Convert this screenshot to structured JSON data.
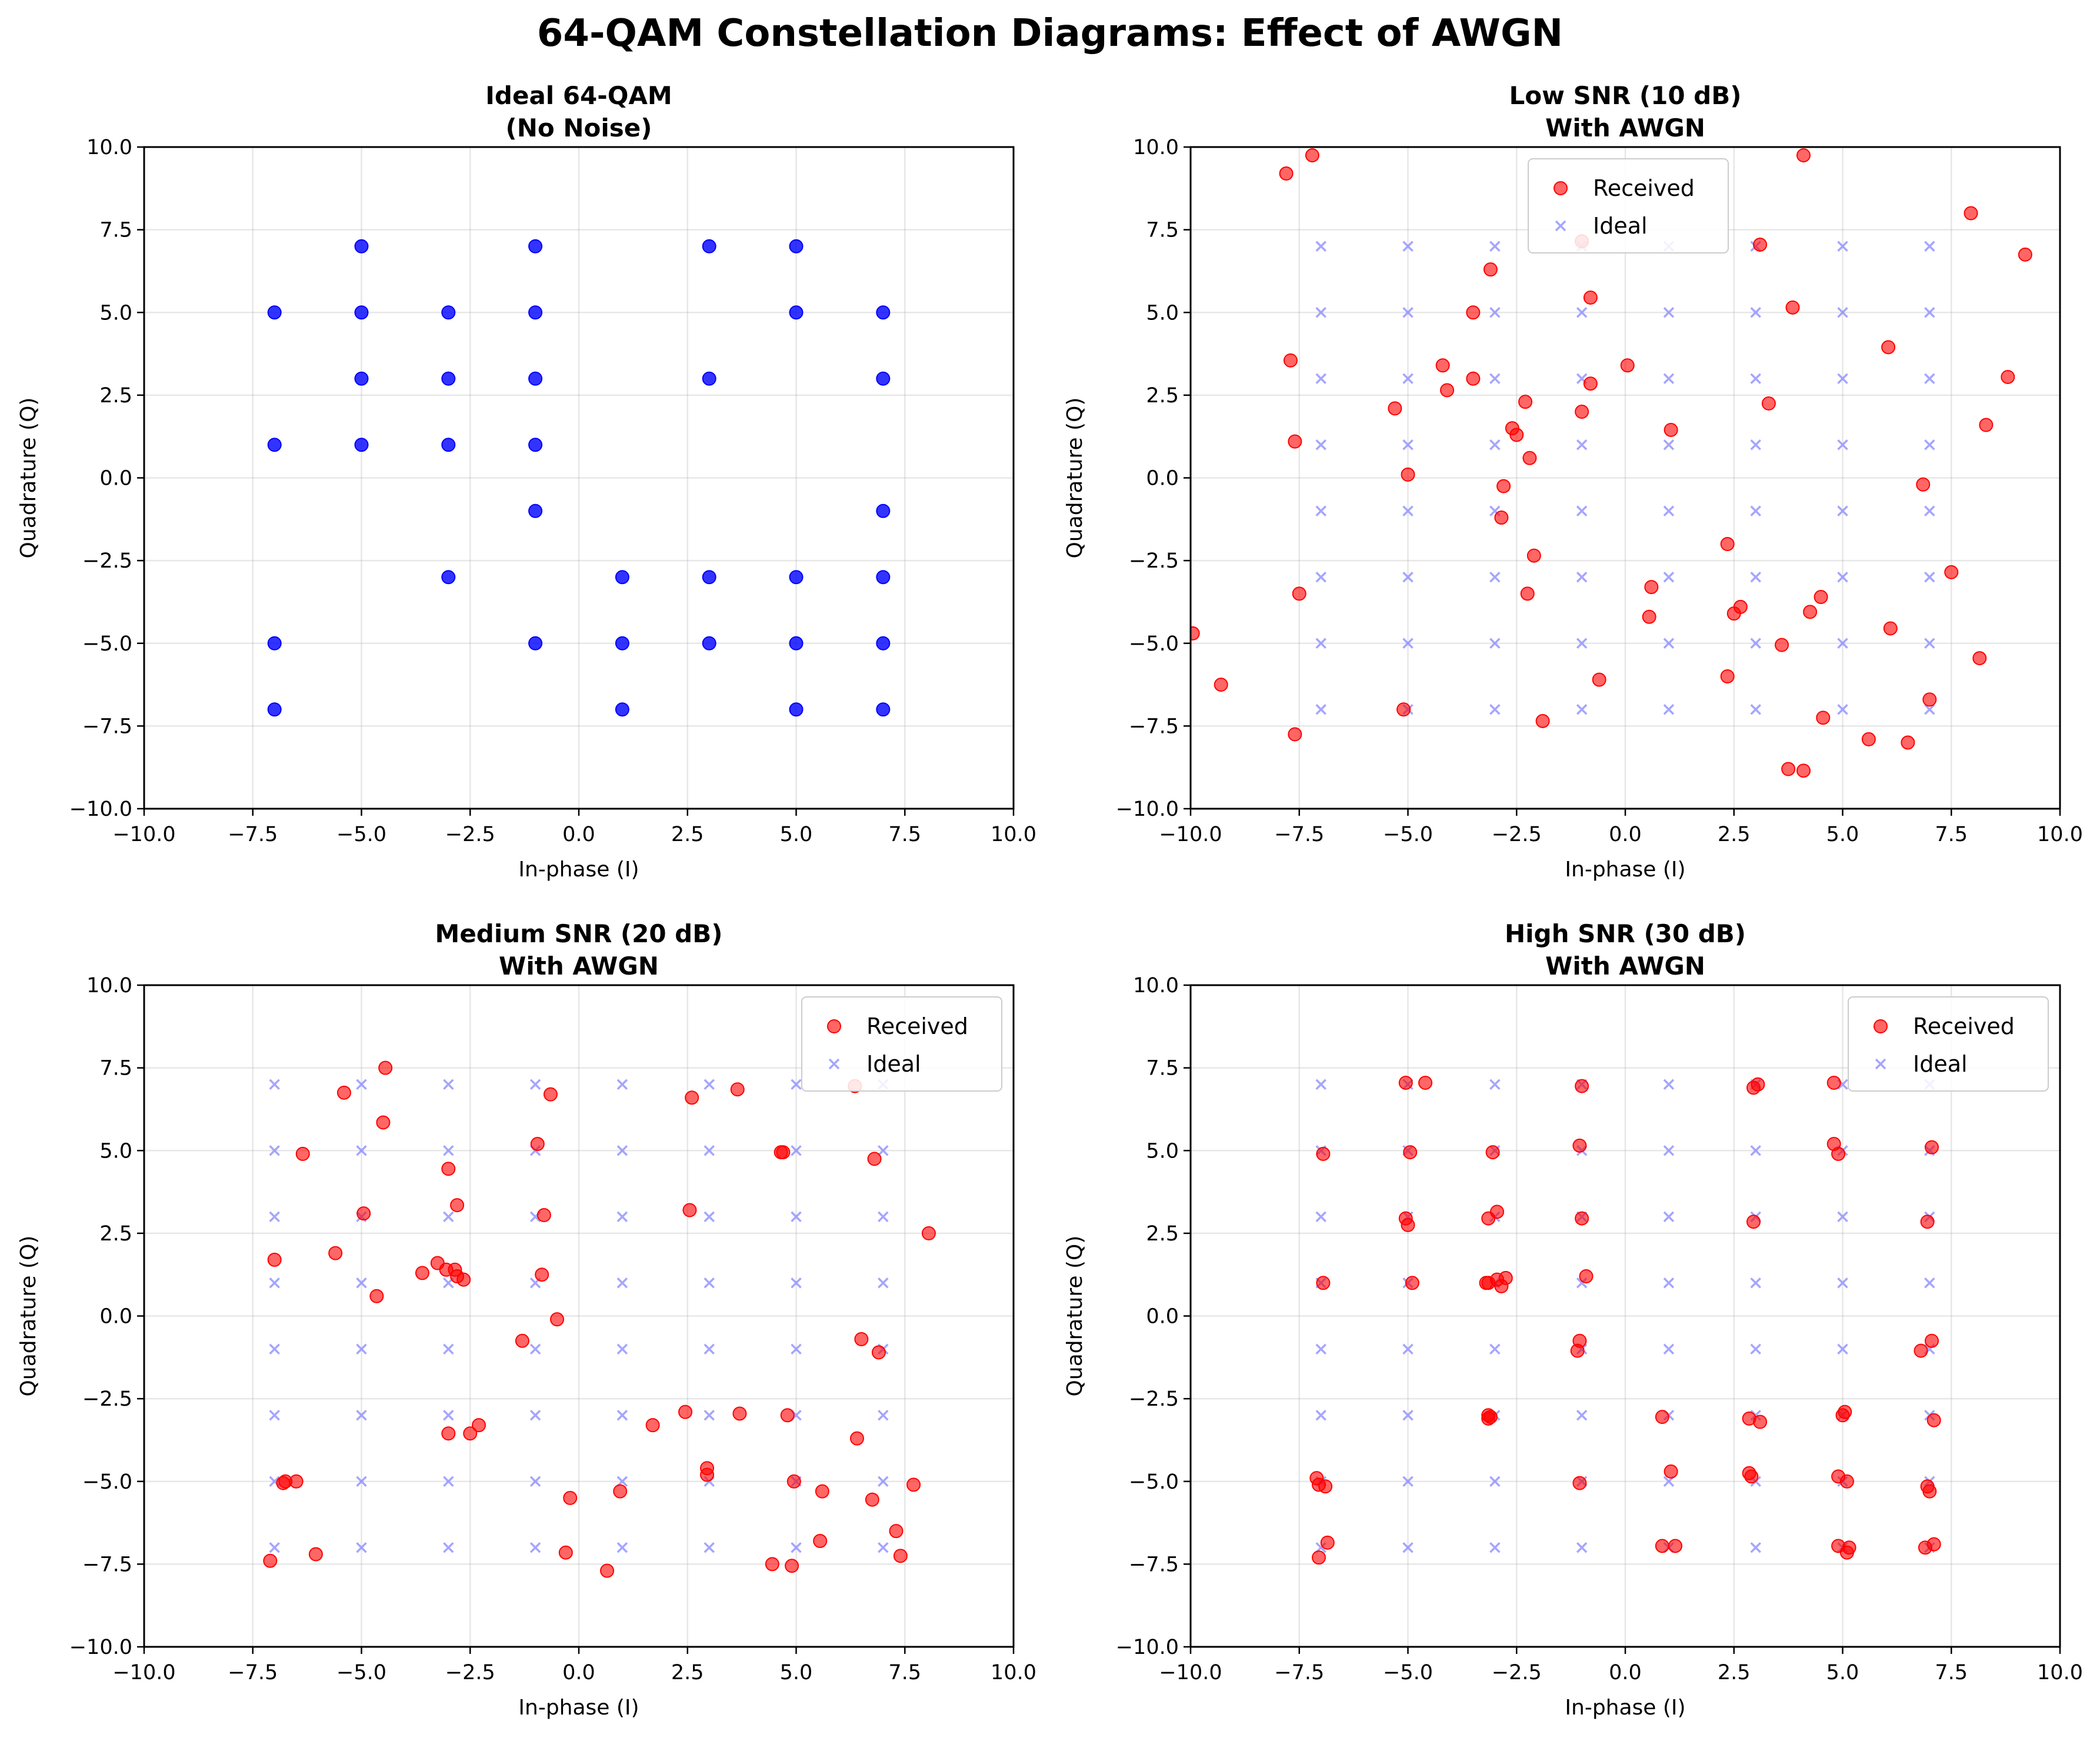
{
  "figure": {
    "title": "64-QAM Constellation Diagrams: Effect of AWGN"
  },
  "chart_data": [
    {
      "type": "scatter",
      "title": "Ideal 64-QAM",
      "subtitle": "(No Noise)",
      "xlabel": "In-phase (I)",
      "ylabel": "Quadrature (Q)",
      "xlim": [
        -10,
        10
      ],
      "ylim": [
        -10,
        10
      ],
      "xticks": [
        -10,
        -7.5,
        -5,
        -2.5,
        0,
        2.5,
        5,
        7.5,
        10
      ],
      "yticks": [
        -10,
        -7.5,
        -5,
        -2.5,
        0,
        2.5,
        5,
        7.5,
        10
      ],
      "grid": true,
      "legend": null,
      "series": [
        {
          "color": "#0000ff",
          "marker": "circle",
          "points": [
            [
              -7,
              5
            ],
            [
              -7,
              1
            ],
            [
              -7,
              -5
            ],
            [
              -7,
              -7
            ],
            [
              -5,
              7
            ],
            [
              -5,
              5
            ],
            [
              -5,
              3
            ],
            [
              -5,
              1
            ],
            [
              -3,
              5
            ],
            [
              -3,
              3
            ],
            [
              -3,
              1
            ],
            [
              -3,
              -3
            ],
            [
              -1,
              7
            ],
            [
              -1,
              5
            ],
            [
              -1,
              3
            ],
            [
              -1,
              1
            ],
            [
              -1,
              -1
            ],
            [
              -1,
              -5
            ],
            [
              1,
              -3
            ],
            [
              1,
              -5
            ],
            [
              1,
              -7
            ],
            [
              3,
              7
            ],
            [
              3,
              3
            ],
            [
              3,
              -3
            ],
            [
              3,
              -5
            ],
            [
              5,
              7
            ],
            [
              5,
              5
            ],
            [
              5,
              -3
            ],
            [
              5,
              -5
            ],
            [
              5,
              -7
            ],
            [
              7,
              5
            ],
            [
              7,
              3
            ],
            [
              7,
              -1
            ],
            [
              7,
              -3
            ],
            [
              7,
              -5
            ],
            [
              7,
              -7
            ]
          ]
        }
      ]
    },
    {
      "type": "scatter",
      "title": "Low SNR (10 dB)",
      "subtitle": "With AWGN",
      "xlabel": "In-phase (I)",
      "ylabel": "Quadrature (Q)",
      "xlim": [
        -10,
        10
      ],
      "ylim": [
        -10,
        10
      ],
      "xticks": [
        -10,
        -7.5,
        -5,
        -2.5,
        0,
        2.5,
        5,
        7.5,
        10
      ],
      "yticks": [
        -10,
        -7.5,
        -5,
        -2.5,
        0,
        2.5,
        5,
        7.5,
        10
      ],
      "grid": true,
      "legend": "top-center",
      "series": [
        {
          "name": "Received",
          "color": "#ff0000",
          "marker": "circle",
          "points": [
            [
              -7.8,
              9.2
            ],
            [
              -7.2,
              9.75
            ],
            [
              -7.7,
              3.55
            ],
            [
              -7.6,
              1.1
            ],
            [
              -7.5,
              -3.5
            ],
            [
              -7.6,
              -7.75
            ],
            [
              -9.95,
              -4.7
            ],
            [
              -9.3,
              -6.25
            ],
            [
              -5.3,
              2.1
            ],
            [
              -5.0,
              0.1
            ],
            [
              -5.1,
              -7.0
            ],
            [
              -4.2,
              3.4
            ],
            [
              -4.1,
              2.65
            ],
            [
              -3.5,
              5.0
            ],
            [
              -3.5,
              3.0
            ],
            [
              -3.1,
              6.3
            ],
            [
              -2.6,
              1.5
            ],
            [
              -2.5,
              1.3
            ],
            [
              -2.3,
              2.3
            ],
            [
              -2.2,
              0.6
            ],
            [
              -2.8,
              -0.25
            ],
            [
              -2.85,
              -1.2
            ],
            [
              -2.1,
              -2.35
            ],
            [
              -2.25,
              -3.5
            ],
            [
              -1.9,
              -7.35
            ],
            [
              -1.0,
              7.15
            ],
            [
              -0.8,
              5.45
            ],
            [
              -0.8,
              2.85
            ],
            [
              -1.0,
              2.0
            ],
            [
              -0.6,
              -6.1
            ],
            [
              0.05,
              3.4
            ],
            [
              1.05,
              1.45
            ],
            [
              0.6,
              -3.3
            ],
            [
              0.55,
              -4.2
            ],
            [
              3.1,
              7.05
            ],
            [
              3.3,
              2.25
            ],
            [
              3.85,
              5.15
            ],
            [
              2.35,
              -2.0
            ],
            [
              2.5,
              -4.1
            ],
            [
              2.65,
              -3.9
            ],
            [
              2.35,
              -6.0
            ],
            [
              3.6,
              -5.05
            ],
            [
              3.75,
              -8.8
            ],
            [
              4.1,
              -8.85
            ],
            [
              4.25,
              -4.05
            ],
            [
              4.5,
              -3.6
            ],
            [
              4.55,
              -7.25
            ],
            [
              4.1,
              9.75
            ],
            [
              5.6,
              -7.9
            ],
            [
              6.05,
              3.95
            ],
            [
              6.1,
              -4.55
            ],
            [
              6.5,
              -8.0
            ],
            [
              6.85,
              -0.2
            ],
            [
              7.0,
              -6.7
            ],
            [
              7.5,
              -2.85
            ],
            [
              7.95,
              8.0
            ],
            [
              8.15,
              -5.45
            ],
            [
              8.3,
              1.6
            ],
            [
              8.8,
              3.05
            ],
            [
              9.2,
              6.75
            ]
          ]
        },
        {
          "name": "Ideal",
          "color": "#7f7fff",
          "marker": "x",
          "grid_points": [
            -7,
            -5,
            -3,
            -1,
            1,
            3,
            5,
            7
          ]
        }
      ]
    },
    {
      "type": "scatter",
      "title": "Medium SNR (20 dB)",
      "subtitle": "With AWGN",
      "xlabel": "In-phase (I)",
      "ylabel": "Quadrature (Q)",
      "xlim": [
        -10,
        10
      ],
      "ylim": [
        -10,
        10
      ],
      "xticks": [
        -10,
        -7.5,
        -5,
        -2.5,
        0,
        2.5,
        5,
        7.5,
        10
      ],
      "yticks": [
        -10,
        -7.5,
        -5,
        -2.5,
        0,
        2.5,
        5,
        7.5,
        10
      ],
      "grid": true,
      "legend": "top-right",
      "series": [
        {
          "name": "Received",
          "color": "#ff0000",
          "marker": "circle",
          "points": [
            [
              -7.0,
              1.7
            ],
            [
              -7.1,
              -7.4
            ],
            [
              -6.35,
              4.9
            ],
            [
              -6.8,
              -5.05
            ],
            [
              -6.75,
              -5.0
            ],
            [
              -6.5,
              -5.0
            ],
            [
              -6.05,
              -7.2
            ],
            [
              -5.4,
              6.75
            ],
            [
              -5.6,
              1.9
            ],
            [
              -4.95,
              3.1
            ],
            [
              -4.65,
              0.6
            ],
            [
              -4.5,
              5.85
            ],
            [
              -4.45,
              7.5
            ],
            [
              -3.6,
              1.3
            ],
            [
              -3.25,
              1.6
            ],
            [
              -3.05,
              1.4
            ],
            [
              -2.85,
              1.4
            ],
            [
              -2.8,
              1.2
            ],
            [
              -2.65,
              1.1
            ],
            [
              -3.0,
              4.45
            ],
            [
              -2.8,
              3.35
            ],
            [
              -3.0,
              -3.55
            ],
            [
              -2.5,
              -3.55
            ],
            [
              -2.3,
              -3.3
            ],
            [
              -0.95,
              5.2
            ],
            [
              -0.65,
              6.7
            ],
            [
              -0.8,
              3.05
            ],
            [
              -0.85,
              1.25
            ],
            [
              -0.5,
              -0.1
            ],
            [
              -1.3,
              -0.75
            ],
            [
              -0.2,
              -5.5
            ],
            [
              -0.3,
              -7.15
            ],
            [
              0.65,
              -7.7
            ],
            [
              0.95,
              -5.3
            ],
            [
              1.7,
              -3.3
            ],
            [
              2.45,
              -2.9
            ],
            [
              2.55,
              3.2
            ],
            [
              2.6,
              6.6
            ],
            [
              2.95,
              -4.6
            ],
            [
              2.95,
              -4.8
            ],
            [
              3.65,
              6.85
            ],
            [
              3.7,
              -2.95
            ],
            [
              4.45,
              -7.5
            ],
            [
              4.65,
              4.95
            ],
            [
              4.7,
              4.95
            ],
            [
              4.8,
              -3.0
            ],
            [
              4.9,
              -7.55
            ],
            [
              4.95,
              -5.0
            ],
            [
              5.55,
              -6.8
            ],
            [
              5.6,
              -5.3
            ],
            [
              6.35,
              6.95
            ],
            [
              6.4,
              -3.7
            ],
            [
              6.5,
              -0.7
            ],
            [
              6.8,
              4.75
            ],
            [
              6.75,
              -5.55
            ],
            [
              6.9,
              -1.1
            ],
            [
              7.3,
              -6.5
            ],
            [
              7.4,
              -7.25
            ],
            [
              7.7,
              -5.1
            ],
            [
              8.05,
              2.5
            ]
          ]
        },
        {
          "name": "Ideal",
          "color": "#7f7fff",
          "marker": "x",
          "grid_points": [
            -7,
            -5,
            -3,
            -1,
            1,
            3,
            5,
            7
          ]
        }
      ]
    },
    {
      "type": "scatter",
      "title": "High SNR (30 dB)",
      "subtitle": "With AWGN",
      "xlabel": "In-phase (I)",
      "ylabel": "Quadrature (Q)",
      "xlim": [
        -10,
        10
      ],
      "ylim": [
        -10,
        10
      ],
      "xticks": [
        -10,
        -7.5,
        -5,
        -2.5,
        0,
        2.5,
        5,
        7.5,
        10
      ],
      "yticks": [
        -10,
        -7.5,
        -5,
        -2.5,
        0,
        2.5,
        5,
        7.5,
        10
      ],
      "grid": true,
      "legend": "top-right",
      "series": [
        {
          "name": "Received",
          "color": "#ff0000",
          "marker": "circle",
          "points": [
            [
              -6.95,
              4.9
            ],
            [
              -6.95,
              1.0
            ],
            [
              -7.1,
              -4.9
            ],
            [
              -7.05,
              -5.1
            ],
            [
              -6.9,
              -5.15
            ],
            [
              -6.85,
              -6.85
            ],
            [
              -7.05,
              -7.3
            ],
            [
              -5.05,
              7.05
            ],
            [
              -4.6,
              7.05
            ],
            [
              -4.95,
              4.95
            ],
            [
              -5.05,
              2.95
            ],
            [
              -5.0,
              2.75
            ],
            [
              -4.9,
              1.0
            ],
            [
              -3.05,
              4.95
            ],
            [
              -3.15,
              2.95
            ],
            [
              -2.95,
              3.15
            ],
            [
              -3.2,
              1.0
            ],
            [
              -3.15,
              1.0
            ],
            [
              -2.95,
              1.1
            ],
            [
              -2.85,
              0.9
            ],
            [
              -2.75,
              1.15
            ],
            [
              -3.15,
              -3.0
            ],
            [
              -3.15,
              -3.1
            ],
            [
              -3.1,
              -3.05
            ],
            [
              -1.0,
              6.95
            ],
            [
              -1.05,
              5.15
            ],
            [
              -1.0,
              2.95
            ],
            [
              -0.9,
              1.2
            ],
            [
              -1.05,
              -0.75
            ],
            [
              -1.1,
              -1.05
            ],
            [
              -1.05,
              -5.05
            ],
            [
              0.85,
              -3.05
            ],
            [
              0.85,
              -6.95
            ],
            [
              1.05,
              -4.7
            ],
            [
              1.15,
              -6.95
            ],
            [
              3.05,
              7.0
            ],
            [
              2.95,
              6.9
            ],
            [
              2.95,
              2.85
            ],
            [
              2.85,
              -3.1
            ],
            [
              3.1,
              -3.2
            ],
            [
              2.85,
              -4.75
            ],
            [
              2.9,
              -4.85
            ],
            [
              4.8,
              7.05
            ],
            [
              4.8,
              5.2
            ],
            [
              4.9,
              4.9
            ],
            [
              5.05,
              -2.9
            ],
            [
              5.0,
              -3.0
            ],
            [
              4.9,
              -4.85
            ],
            [
              5.1,
              -5.0
            ],
            [
              4.9,
              -6.95
            ],
            [
              5.15,
              -7.0
            ],
            [
              5.1,
              -7.15
            ],
            [
              7.05,
              5.1
            ],
            [
              6.95,
              2.85
            ],
            [
              7.05,
              -0.75
            ],
            [
              6.8,
              -1.05
            ],
            [
              7.1,
              -3.15
            ],
            [
              6.95,
              -5.15
            ],
            [
              7.0,
              -5.3
            ],
            [
              7.1,
              -6.9
            ],
            [
              6.9,
              -7.0
            ]
          ]
        },
        {
          "name": "Ideal",
          "color": "#7f7fff",
          "marker": "x",
          "grid_points": [
            -7,
            -5,
            -3,
            -1,
            1,
            3,
            5,
            7
          ]
        }
      ]
    }
  ]
}
